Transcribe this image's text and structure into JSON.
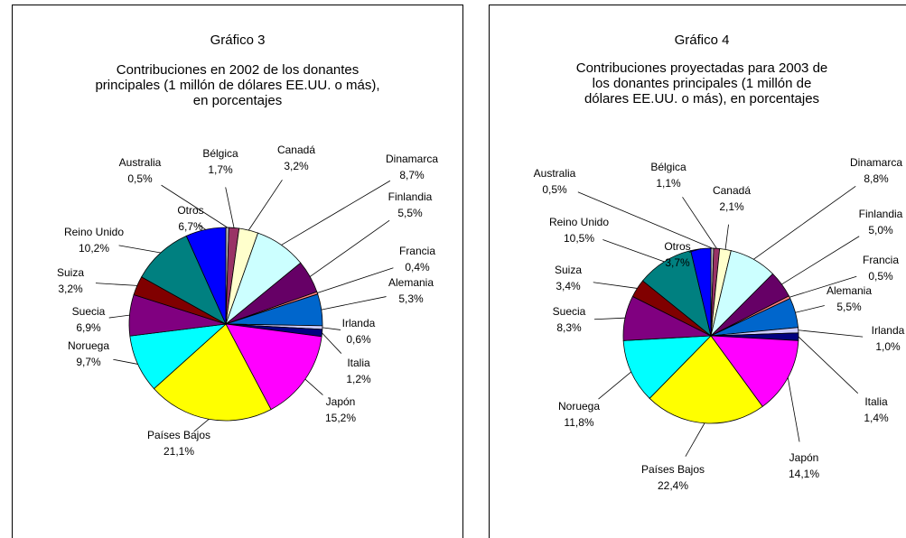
{
  "chart_data": [
    {
      "type": "pie",
      "title": "Gráfico 3",
      "subtitle": [
        "Contribuciones en 2002 de los donantes",
        "principales (1 millón de dólares EE.UU. o más),",
        "en porcentajes"
      ],
      "categories": [
        "Australia",
        "Bélgica",
        "Canadá",
        "Dinamarca",
        "Finlandia",
        "Francia",
        "Alemania",
        "Irlanda",
        "Italia",
        "Japón",
        "Países Bajos",
        "Noruega",
        "Suecia",
        "Suiza",
        "Reino Unido",
        "Otros"
      ],
      "values": [
        0.5,
        1.7,
        3.2,
        8.7,
        5.5,
        0.4,
        5.3,
        0.6,
        1.2,
        15.2,
        21.1,
        9.7,
        6.9,
        3.2,
        10.2,
        6.7
      ],
      "value_labels": [
        "0,5%",
        "1,7%",
        "3,2%",
        "8,7%",
        "5,5%",
        "0,4%",
        "5,3%",
        "0,6%",
        "1,2%",
        "15,2%",
        "21,1%",
        "9,7%",
        "6,9%",
        "3,2%",
        "10,2%",
        "6,7%"
      ],
      "colors": [
        "#c0c0c0",
        "#993366",
        "#ffffcc",
        "#ccffff",
        "#660066",
        "#ff8080",
        "#0066cc",
        "#ccccff",
        "#000080",
        "#ff00ff",
        "#ffff00",
        "#00ffff",
        "#800080",
        "#800000",
        "#008080",
        "#0000ff"
      ]
    },
    {
      "type": "pie",
      "title": "Gráfico 4",
      "subtitle": [
        "Contribuciones proyectadas para 2003 de",
        "los donantes principales (1 millón de",
        "dólares EE.UU. o más), en porcentajes"
      ],
      "categories": [
        "Australia",
        "Bélgica",
        "Canadá",
        "Dinamarca",
        "Finlandia",
        "Francia",
        "Alemania",
        "Irlanda",
        "Italia",
        "Japón",
        "Países Bajos",
        "Noruega",
        "Suecia",
        "Suiza",
        "Reino Unido",
        "Otros"
      ],
      "values": [
        0.5,
        1.1,
        2.1,
        8.8,
        5.0,
        0.5,
        5.5,
        1.0,
        1.4,
        14.1,
        22.4,
        11.8,
        8.3,
        3.4,
        10.5,
        3.7
      ],
      "value_labels": [
        "0,5%",
        "1,1%",
        "2,1%",
        "8,8%",
        "5,0%",
        "0,5%",
        "5,5%",
        "1,0%",
        "1,4%",
        "14,1%",
        "22,4%",
        "11,8%",
        "8,3%",
        "3,4%",
        "10,5%",
        "3,7%"
      ],
      "colors": [
        "#c0c0c0",
        "#993366",
        "#ffffcc",
        "#ccffff",
        "#660066",
        "#ff8080",
        "#0066cc",
        "#ccccff",
        "#000080",
        "#ff00ff",
        "#ffff00",
        "#00ffff",
        "#800080",
        "#800000",
        "#008080",
        "#0000ff"
      ]
    }
  ]
}
